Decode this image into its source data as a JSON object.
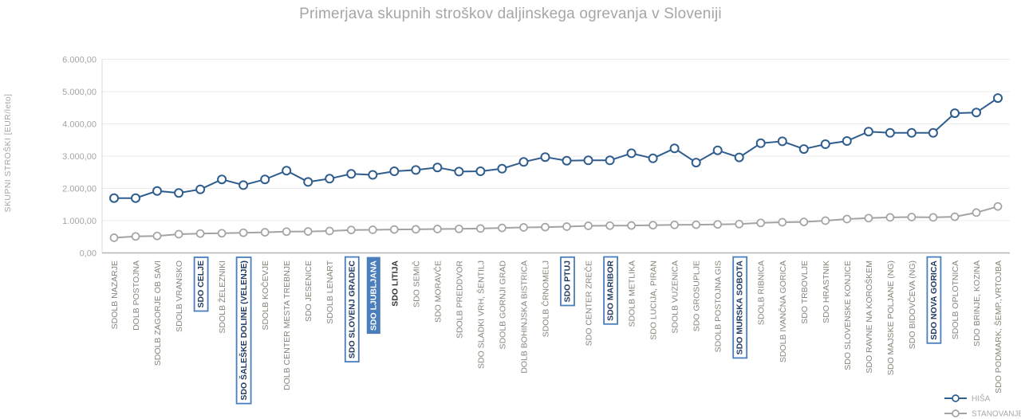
{
  "title": "Primerjava skupnih stroškov daljinskega ogrevanja v Sloveniji",
  "y_axis": {
    "title": "SKUPNI STROŠKI [EUR/leto]",
    "tick_labels": [
      "0,00",
      "1.000,00",
      "2.000,00",
      "3.000,00",
      "4.000,00",
      "5.000,00",
      "6.000,00"
    ],
    "min": 0,
    "max": 6000,
    "step": 1000
  },
  "chart_data": {
    "type": "line",
    "title": "Primerjava skupnih stroškov daljinskega ogrevanja v Sloveniji",
    "xlabel": "",
    "ylabel": "SKUPNI STROŠKI [EUR/leto]",
    "ylim": [
      0,
      6000
    ],
    "grid": "horizontal",
    "legend_position": "bottom-right",
    "categories": [
      "SDOLB NAZARJE",
      "DOLB POSTOJNA",
      "SDOLB ZAGORJE OB SAVI",
      "SDOLB VRANSKO",
      "SDO CELJE",
      "SDOLB ŽELEZNIKI",
      "SDO ŠALEŠKE DOLINE (VELENJE)",
      "SDOLB KOČEVJE",
      "DOLB CENTER MESTA TREBNJE",
      "SDO JESENICE",
      "SDOLB LENART",
      "SDO SLOVENJ GRADEC",
      "SDO LJUBLJANA",
      "SDO LITIJA",
      "SDO SEMIČ",
      "SDO MORAVČE",
      "SDOLB PREDDVOR",
      "SDO SLADKI VRH, ŠENTILJ",
      "SDOLB GORNJI GRAD",
      "DOLB BOHINJSKA BISTRICA",
      "SDOLB ČRNOMELJ",
      "SDO PTUJ",
      "SDO CENTER ZREČE",
      "SDO MARIBOR",
      "SDOLB METLIKA",
      "SDO LUCIJA, PIRAN",
      "SDOLB VUZENICA",
      "SDO GROSUPLJE",
      "SDOLB POSTOJNA GIS",
      "SDO MURSKA SOBOTA",
      "SDOLB RIBNICA",
      "SDOLB IVANČNA GORICA",
      "SDO TRBOVLJE",
      "SDO HRASTNIK",
      "SDO SLOVENSKE KONJICE",
      "SDO RAVNE NA KOROŠKEM",
      "SDO MAJSKE POLJANE (NG)",
      "SDO BIDOVČEVA (NG)",
      "SDO NOVA GORICA",
      "SDOLB OPLOTNICA",
      "SDO BRINJE, KOZINA",
      "SDO PODMARK, ŠEMP.,VRTOJBA"
    ],
    "series": [
      {
        "name": "HIŠA",
        "color": "#2f5d8e",
        "values": [
          1700,
          1700,
          1920,
          1860,
          1970,
          2280,
          2100,
          2280,
          2550,
          2200,
          2300,
          2450,
          2420,
          2530,
          2570,
          2650,
          2520,
          2530,
          2610,
          2820,
          2970,
          2860,
          2870,
          2870,
          3090,
          2930,
          3240,
          2800,
          3180,
          2960,
          3400,
          3460,
          3220,
          3370,
          3470,
          3760,
          3720,
          3720,
          3720,
          4330,
          4350,
          4800
        ]
      },
      {
        "name": "STANOVANJE",
        "color": "#a3a3a3",
        "values": [
          470,
          510,
          525,
          580,
          600,
          610,
          625,
          640,
          660,
          665,
          680,
          710,
          715,
          725,
          730,
          740,
          745,
          755,
          775,
          790,
          800,
          815,
          840,
          845,
          850,
          860,
          870,
          875,
          885,
          895,
          930,
          950,
          960,
          1000,
          1050,
          1080,
          1100,
          1110,
          1100,
          1120,
          1250,
          1440
        ]
      }
    ],
    "highlights": {
      "boxed_categories": [
        "SDO CELJE",
        "SDO ŠALEŠKE DOLINE (VELENJE)",
        "SDO SLOVENJ GRADEC",
        "SDO PTUJ",
        "SDO MARIBOR",
        "SDO MURSKA SOBOTA",
        "SDO NOVA GORICA"
      ],
      "filled_categories": [
        "SDO LJUBLJANA"
      ],
      "bold_categories": [
        "SDO LITIJA"
      ]
    }
  },
  "colors": {
    "series_hisa": "#2f5d8e",
    "series_stanovanje": "#a3a3a3",
    "highlight_box_border": "#4a7ebd",
    "highlight_fill": "#4a7ebb",
    "highlight_text_dark": "#1f3a5f",
    "highlight_text_light": "#ffffff",
    "axis_label": "#86867c",
    "tick_label": "#a5a5a5",
    "gridline": "#ebebeb",
    "axis_line": "#b5b5b5",
    "title_text": "#a6a6a6",
    "legend_text": "#a8a8a8"
  }
}
